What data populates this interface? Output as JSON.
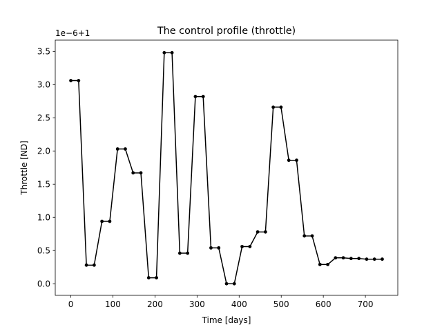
{
  "chart_data": {
    "type": "line",
    "title": "The control profile (throttle)",
    "xlabel": "Time [days]",
    "ylabel": "Throttle [ND]",
    "y_offset_label": "1e−6+1",
    "xlim": [
      -37,
      777
    ],
    "ylim": [
      -0.175,
      3.67
    ],
    "x_ticks": [
      0,
      100,
      200,
      300,
      400,
      500,
      600,
      700
    ],
    "y_ticks": [
      0.0,
      0.5,
      1.0,
      1.5,
      2.0,
      2.5,
      3.0,
      3.5
    ],
    "x_tick_labels": [
      "0",
      "100",
      "200",
      "300",
      "400",
      "500",
      "600",
      "700"
    ],
    "y_tick_labels": [
      "0.0",
      "0.5",
      "1.0",
      "1.5",
      "2.0",
      "2.5",
      "3.0",
      "3.5"
    ],
    "grid": false,
    "color": "#000000",
    "marker": "circle",
    "series": [
      {
        "x": [
          0,
          18.5,
          37,
          55.5,
          74,
          92.5,
          111,
          129.5,
          148,
          166.5,
          185,
          203.5,
          222,
          240.5,
          259,
          277.5,
          296,
          314.5,
          333,
          351.5,
          370,
          388.5,
          407,
          425.5,
          444,
          462.5,
          481,
          499.5,
          518,
          536.5,
          555,
          573.5,
          592,
          610.5,
          629,
          647.5,
          666,
          684.5,
          703,
          721.5,
          740
        ],
        "values": [
          3.06,
          3.06,
          0.28,
          0.28,
          0.94,
          0.94,
          2.03,
          2.03,
          1.67,
          1.67,
          0.09,
          0.09,
          3.48,
          3.48,
          0.46,
          0.46,
          2.82,
          2.82,
          0.54,
          0.54,
          0.0,
          0.0,
          0.56,
          0.56,
          0.78,
          0.78,
          2.66,
          2.66,
          1.86,
          1.86,
          0.72,
          0.72,
          0.29,
          0.29,
          0.39,
          0.39,
          0.38,
          0.38,
          0.37,
          0.37,
          0.37
        ]
      }
    ]
  }
}
